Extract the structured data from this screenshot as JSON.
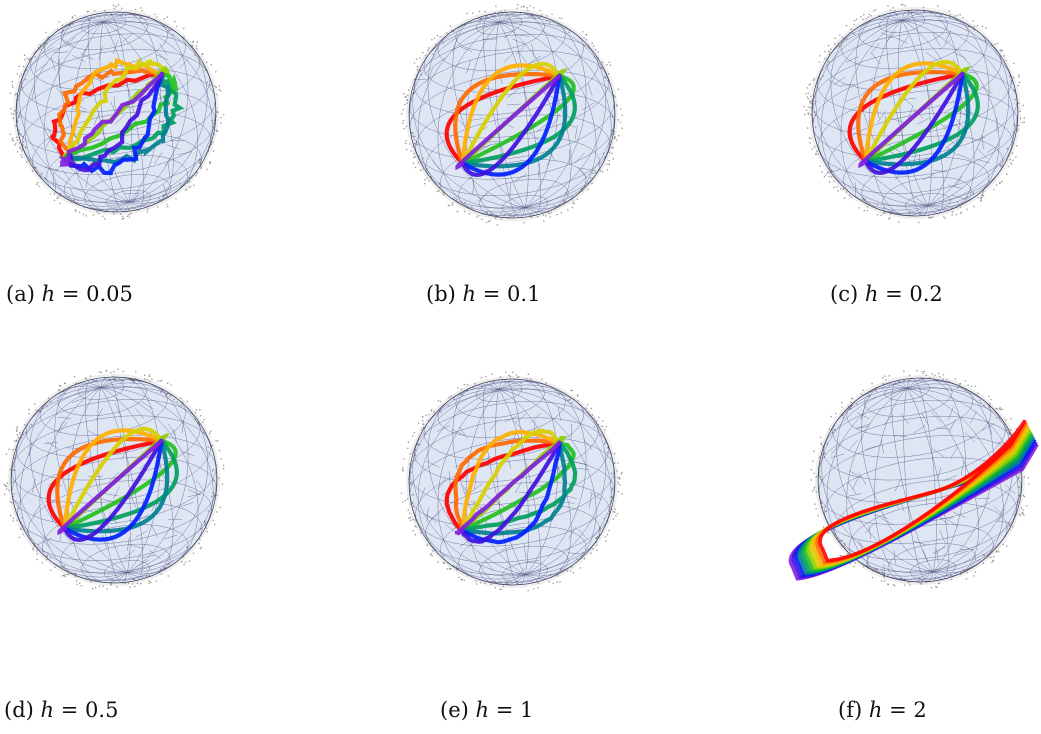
{
  "figure": {
    "panels": [
      {
        "id": "a",
        "label": "(a)",
        "variable": "h",
        "relation": "=",
        "value": "0.05",
        "h": 0.05
      },
      {
        "id": "b",
        "label": "(b)",
        "variable": "h",
        "relation": "=",
        "value": "0.1",
        "h": 0.1
      },
      {
        "id": "c",
        "label": "(c)",
        "variable": "h",
        "relation": "=",
        "value": "0.2",
        "h": 0.2
      },
      {
        "id": "d",
        "label": "(d)",
        "variable": "h",
        "relation": "=",
        "value": "0.5",
        "h": 0.5
      },
      {
        "id": "e",
        "label": "(e)",
        "variable": "h",
        "relation": "=",
        "value": "1",
        "h": 1
      },
      {
        "id": "f",
        "label": "(f)",
        "variable": "h",
        "relation": "=",
        "value": "2",
        "h": 2
      }
    ],
    "curve_colors": [
      "#ff0000",
      "#ff6a00",
      "#ffb000",
      "#d6d000",
      "#8fd000",
      "#22c020",
      "#00a060",
      "#008090",
      "#0020ff",
      "#4010e0",
      "#8020e0"
    ],
    "mesh_color": "#1a1a5a",
    "sphere_fill": "#dfe6f3"
  }
}
